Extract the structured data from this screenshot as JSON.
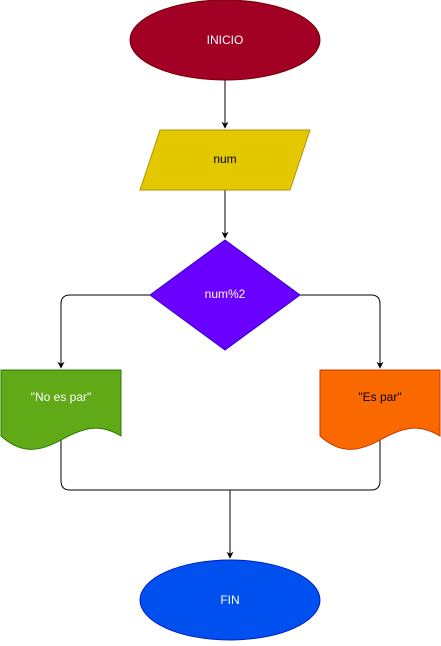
{
  "nodes": {
    "start": {
      "label": "INICIO",
      "fill": "#A20025",
      "text_color": "#ffffff"
    },
    "input": {
      "label": "num",
      "fill": "#E3C800",
      "text_color": "#000000"
    },
    "decision": {
      "label": "num%2",
      "fill": "#6A00FF",
      "text_color": "#ffffff"
    },
    "output_no": {
      "label": "\"No es par\"",
      "fill": "#60A917",
      "text_color": "#ffffff"
    },
    "output_yes": {
      "label": "\"Es par\"",
      "fill": "#FA6800",
      "text_color": "#000000"
    },
    "end": {
      "label": "FIN",
      "fill": "#0050EF",
      "text_color": "#ffffff"
    }
  },
  "edge_color": "#000000"
}
